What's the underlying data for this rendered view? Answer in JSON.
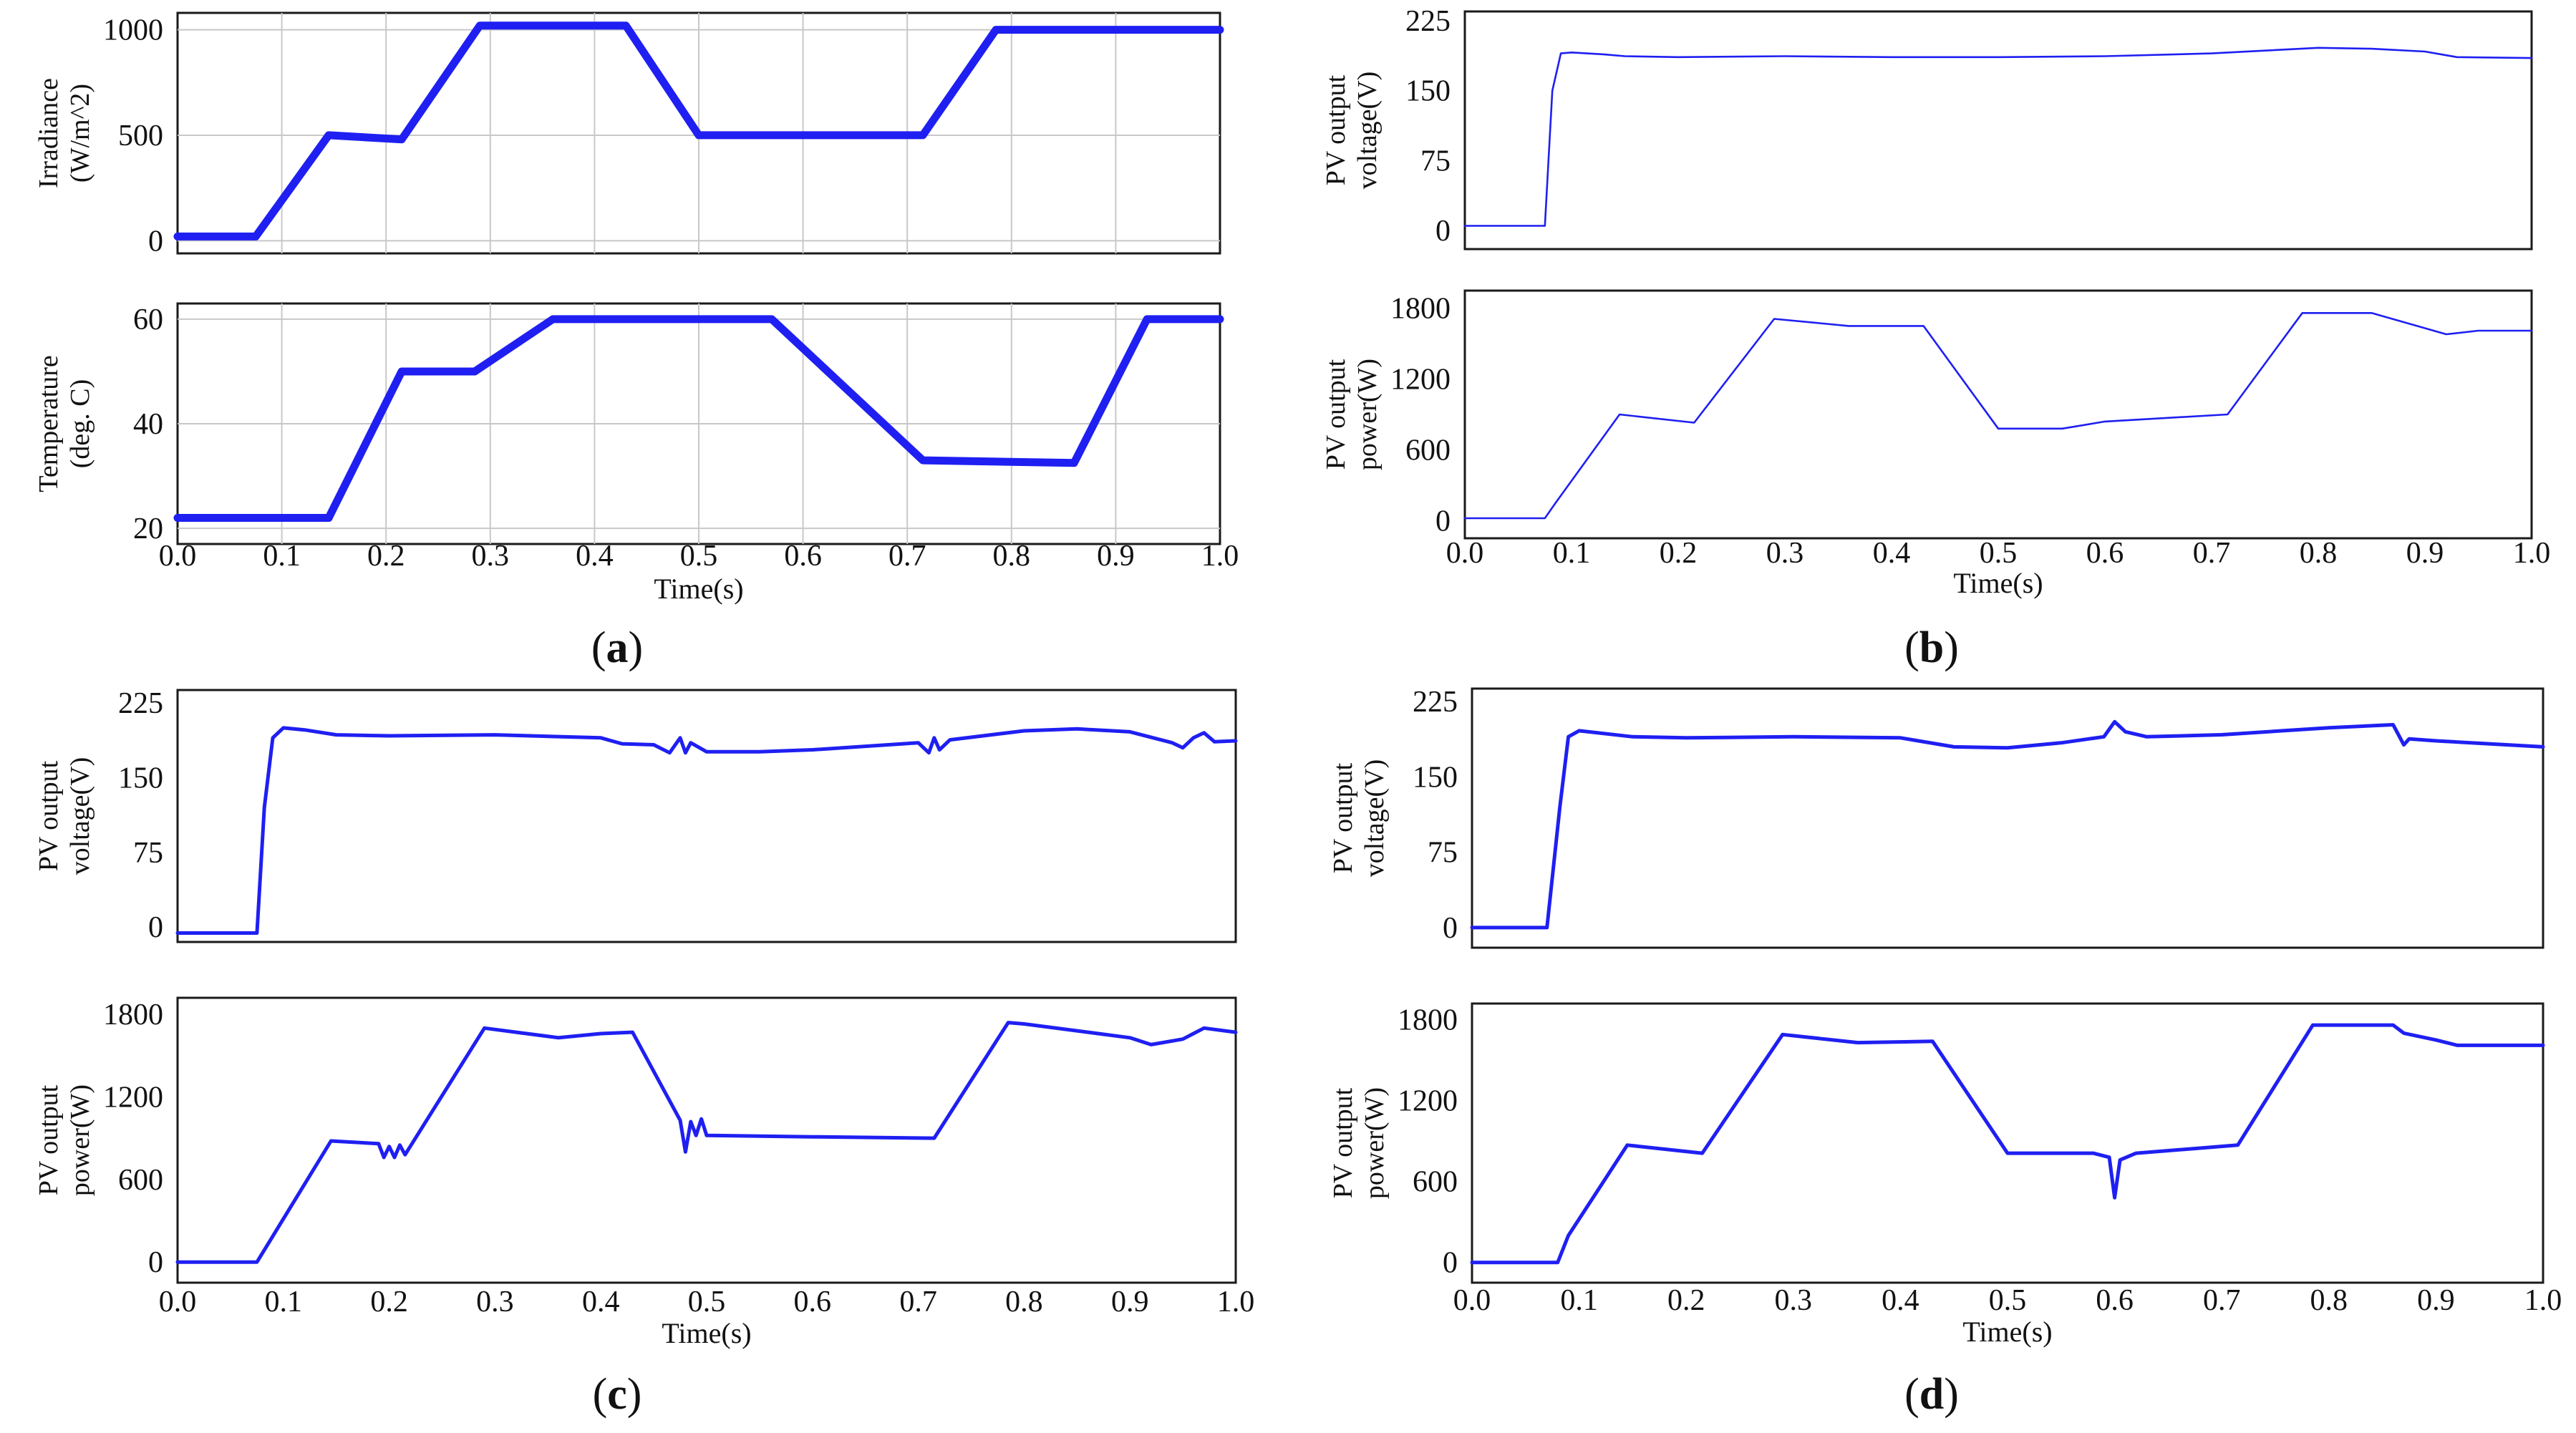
{
  "colors": {
    "trace": "#1f1ff2",
    "axis": "#1a1a1a",
    "grid": "#c8c8c8"
  },
  "x_axis": {
    "label": "Time(s)",
    "ticks": [
      "0.0",
      "0.1",
      "0.2",
      "0.3",
      "0.4",
      "0.5",
      "0.6",
      "0.7",
      "0.8",
      "0.9",
      "1.0"
    ]
  },
  "panel_labels": [
    {
      "open": "(",
      "letter": "a",
      "close": ")"
    },
    {
      "open": "(",
      "letter": "b",
      "close": ")"
    },
    {
      "open": "(",
      "letter": "c",
      "close": ")"
    },
    {
      "open": "(",
      "letter": "d",
      "close": ")"
    }
  ],
  "chart_data": [
    {
      "type": "line",
      "panel": "a",
      "title": "",
      "ylabel": [
        "Irradiance",
        "(W/m^2)"
      ],
      "xlabel": "Time(s)",
      "xlim": [
        0,
        1
      ],
      "ylim": [
        -60,
        1080
      ],
      "yticks": [
        0,
        500,
        1000
      ],
      "ytick_labels": [
        "0",
        "500",
        "1000"
      ],
      "grid": true,
      "style": "thick",
      "series": [
        {
          "name": "Irradiance",
          "x": [
            0,
            0.075,
            0.145,
            0.215,
            0.29,
            0.43,
            0.5,
            0.715,
            0.785,
            1.0
          ],
          "y": [
            20,
            20,
            500,
            480,
            1020,
            1020,
            500,
            500,
            1000,
            1000
          ]
        }
      ]
    },
    {
      "type": "line",
      "panel": "a",
      "title": "",
      "ylabel": [
        "Temperature",
        "(deg. C)"
      ],
      "xlabel": "Time(s)",
      "xlim": [
        0,
        1
      ],
      "ylim": [
        17,
        63
      ],
      "yticks": [
        20,
        40,
        60
      ],
      "ytick_labels": [
        "20",
        "40",
        "60"
      ],
      "grid": true,
      "style": "thick",
      "series": [
        {
          "name": "Temperature",
          "x": [
            0,
            0.145,
            0.215,
            0.285,
            0.36,
            0.57,
            0.715,
            0.86,
            0.93,
            1.0
          ],
          "y": [
            22,
            22,
            50,
            50,
            60,
            60,
            33,
            32.5,
            60,
            60
          ]
        }
      ]
    },
    {
      "type": "line",
      "panel": "b",
      "title": "",
      "ylabel": [
        "PV output",
        "voltage(V)"
      ],
      "xlabel": "Time(s)",
      "xlim": [
        0,
        1
      ],
      "ylim": [
        -20,
        235
      ],
      "yticks": [
        0,
        75,
        150,
        225
      ],
      "ytick_labels": [
        "0",
        "75",
        "150",
        "225"
      ],
      "grid": false,
      "style": "thin",
      "series": [
        {
          "name": "PV output voltage",
          "x": [
            0,
            0.075,
            0.082,
            0.09,
            0.1,
            0.13,
            0.15,
            0.2,
            0.3,
            0.4,
            0.5,
            0.6,
            0.7,
            0.75,
            0.8,
            0.85,
            0.9,
            0.93,
            1.0
          ],
          "y": [
            5,
            5,
            150,
            190,
            191,
            189,
            187,
            186,
            187,
            186,
            186,
            187,
            190,
            193,
            196,
            195,
            192,
            186,
            185
          ]
        }
      ]
    },
    {
      "type": "line",
      "panel": "b",
      "title": "",
      "ylabel": [
        "PV output",
        "power(W)"
      ],
      "xlabel": "Time(s)",
      "xlim": [
        0,
        1
      ],
      "ylim": [
        -150,
        1950
      ],
      "yticks": [
        0,
        600,
        1200,
        1800
      ],
      "ytick_labels": [
        "0",
        "600",
        "1200",
        "1800"
      ],
      "grid": false,
      "style": "thin",
      "series": [
        {
          "name": "PV output power",
          "x": [
            0,
            0.075,
            0.085,
            0.145,
            0.215,
            0.29,
            0.36,
            0.43,
            0.5,
            0.56,
            0.6,
            0.715,
            0.785,
            0.85,
            0.92,
            0.95,
            1.0
          ],
          "y": [
            20,
            20,
            150,
            900,
            830,
            1710,
            1650,
            1650,
            780,
            780,
            840,
            900,
            1760,
            1760,
            1580,
            1610,
            1610
          ]
        }
      ]
    },
    {
      "type": "line",
      "panel": "c",
      "title": "",
      "ylabel": [
        "PV output",
        "voltage(V)"
      ],
      "xlabel": "Time(s)",
      "xlim": [
        0,
        1
      ],
      "ylim": [
        -15,
        238
      ],
      "yticks": [
        0,
        75,
        150,
        225
      ],
      "ytick_labels": [
        "0",
        "75",
        "150",
        "225"
      ],
      "grid": false,
      "style": "medium",
      "series": [
        {
          "name": "PV output voltage",
          "x": [
            0,
            0.075,
            0.082,
            0.09,
            0.1,
            0.12,
            0.15,
            0.2,
            0.3,
            0.4,
            0.42,
            0.45,
            0.465,
            0.475,
            0.48,
            0.485,
            0.5,
            0.55,
            0.6,
            0.7,
            0.71,
            0.715,
            0.72,
            0.73,
            0.8,
            0.85,
            0.9,
            0.94,
            0.95,
            0.96,
            0.97,
            0.98,
            1.0
          ],
          "y": [
            -6,
            -6,
            120,
            190,
            200,
            198,
            193,
            192,
            193,
            190,
            184,
            183,
            175,
            190,
            175,
            185,
            176,
            176,
            178,
            185,
            175,
            190,
            178,
            188,
            197,
            199,
            196,
            185,
            180,
            190,
            195,
            186,
            187
          ]
        }
      ]
    },
    {
      "type": "line",
      "panel": "c",
      "title": "",
      "ylabel": [
        "PV output",
        "power(W)"
      ],
      "xlabel": "Time(s)",
      "xlim": [
        0,
        1
      ],
      "ylim": [
        -150,
        1920
      ],
      "yticks": [
        0,
        600,
        1200,
        1800
      ],
      "ytick_labels": [
        "0",
        "600",
        "1200",
        "1800"
      ],
      "grid": false,
      "style": "medium",
      "series": [
        {
          "name": "PV output power",
          "x": [
            0,
            0.075,
            0.145,
            0.19,
            0.195,
            0.2,
            0.205,
            0.21,
            0.215,
            0.29,
            0.32,
            0.36,
            0.4,
            0.43,
            0.475,
            0.48,
            0.485,
            0.49,
            0.495,
            0.5,
            0.6,
            0.715,
            0.785,
            0.8,
            0.85,
            0.9,
            0.92,
            0.95,
            0.96,
            0.97,
            1.0
          ],
          "y": [
            0,
            0,
            880,
            860,
            760,
            840,
            760,
            850,
            780,
            1700,
            1670,
            1630,
            1660,
            1670,
            1030,
            800,
            1020,
            920,
            1040,
            920,
            910,
            900,
            1740,
            1730,
            1680,
            1630,
            1580,
            1620,
            1660,
            1700,
            1670
          ]
        }
      ]
    },
    {
      "type": "line",
      "panel": "d",
      "title": "",
      "ylabel": [
        "PV output",
        "voltage(V)"
      ],
      "xlabel": "Time(s)",
      "xlim": [
        0,
        1
      ],
      "ylim": [
        -20,
        238
      ],
      "yticks": [
        0,
        75,
        150,
        225
      ],
      "ytick_labels": [
        "0",
        "75",
        "150",
        "225"
      ],
      "grid": false,
      "style": "medium",
      "series": [
        {
          "name": "PV output voltage",
          "x": [
            0,
            0.07,
            0.082,
            0.09,
            0.1,
            0.15,
            0.2,
            0.3,
            0.4,
            0.45,
            0.5,
            0.55,
            0.59,
            0.6,
            0.61,
            0.63,
            0.7,
            0.8,
            0.86,
            0.87,
            0.875,
            0.9,
            1.0
          ],
          "y": [
            0,
            0,
            120,
            190,
            196,
            190,
            189,
            190,
            189,
            180,
            179,
            184,
            190,
            205,
            195,
            190,
            192,
            199,
            202,
            182,
            188,
            186,
            180
          ]
        }
      ]
    },
    {
      "type": "line",
      "panel": "d",
      "title": "",
      "ylabel": [
        "PV output",
        "power(W)"
      ],
      "xlabel": "Time(s)",
      "xlim": [
        0,
        1
      ],
      "ylim": [
        -150,
        1920
      ],
      "yticks": [
        0,
        600,
        1200,
        1800
      ],
      "ytick_labels": [
        "0",
        "600",
        "1200",
        "1800"
      ],
      "grid": false,
      "style": "medium",
      "series": [
        {
          "name": "PV output power",
          "x": [
            0,
            0.08,
            0.09,
            0.145,
            0.215,
            0.29,
            0.36,
            0.43,
            0.5,
            0.58,
            0.595,
            0.6,
            0.605,
            0.62,
            0.715,
            0.785,
            0.86,
            0.87,
            0.9,
            0.92,
            1.0
          ],
          "y": [
            0,
            0,
            200,
            870,
            810,
            1690,
            1630,
            1640,
            810,
            810,
            780,
            480,
            760,
            810,
            870,
            1760,
            1760,
            1700,
            1650,
            1610,
            1610
          ]
        }
      ]
    }
  ]
}
